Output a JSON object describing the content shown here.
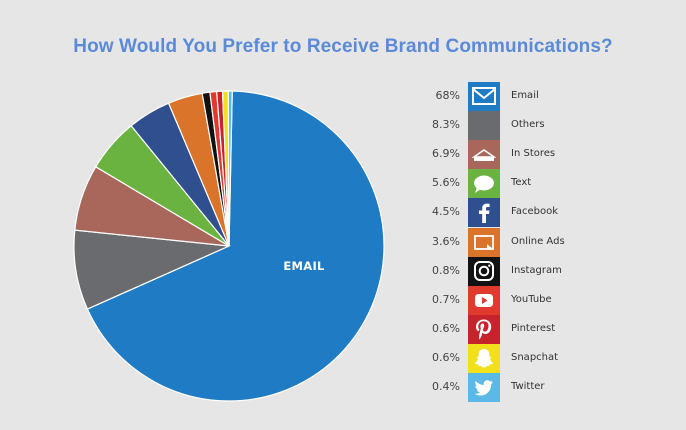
{
  "chart_data": {
    "type": "pie",
    "title": "How Would You Prefer to Receive Brand Communications?",
    "center_label": "EMAIL",
    "slices": [
      {
        "label": "Email",
        "value": 68,
        "display": "68%",
        "color": "#1e7bc4",
        "icon": "envelope-icon"
      },
      {
        "label": "Others",
        "value": 8.3,
        "display": "8.3%",
        "color": "#6a6b6e",
        "icon": "none"
      },
      {
        "label": "In Stores",
        "value": 6.9,
        "display": "6.9%",
        "color": "#a8675a",
        "icon": "store-awning-icon"
      },
      {
        "label": "Text",
        "value": 5.6,
        "display": "5.6%",
        "color": "#6bb341",
        "icon": "chat-bubble-icon"
      },
      {
        "label": "Facebook",
        "value": 4.5,
        "display": "4.5%",
        "color": "#2f4f8f",
        "icon": "facebook-icon"
      },
      {
        "label": "Online Ads",
        "value": 3.6,
        "display": "3.6%",
        "color": "#d9742a",
        "icon": "ad-window-icon"
      },
      {
        "label": "Instagram",
        "value": 0.8,
        "display": "0.8%",
        "color": "#111111",
        "icon": "instagram-icon"
      },
      {
        "label": "YouTube",
        "value": 0.7,
        "display": "0.7%",
        "color": "#e03a2f",
        "icon": "youtube-icon"
      },
      {
        "label": "Pinterest",
        "value": 0.6,
        "display": "0.6%",
        "color": "#c7232c",
        "icon": "pinterest-icon"
      },
      {
        "label": "Snapchat",
        "value": 0.6,
        "display": "0.6%",
        "color": "#f2e01c",
        "icon": "snapchat-ghost-icon"
      },
      {
        "label": "Twitter",
        "value": 0.4,
        "display": "0.4%",
        "color": "#5bb9e8",
        "icon": "twitter-bird-icon"
      }
    ]
  }
}
